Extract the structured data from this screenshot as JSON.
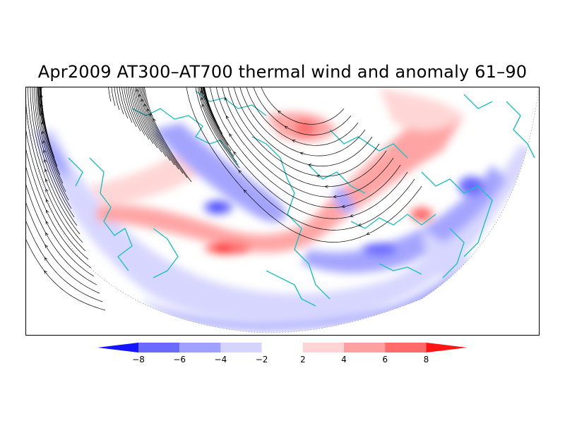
{
  "title": "Apr2009 AT300–AT700 thermal wind and anomaly 61–90",
  "colorbar": {
    "ticks": [
      "−8",
      "−6",
      "−4",
      "−2",
      "2",
      "4",
      "6",
      "8"
    ],
    "colors": [
      "#1414ff",
      "#6a6aff",
      "#a0a0ff",
      "#d4d4ff",
      "#ffffff",
      "#ffd4d4",
      "#ffa0a0",
      "#ff6a6a",
      "#ff1414"
    ]
  },
  "map": {
    "coastline_color": "#20c0c0",
    "streamline_color": "#000000"
  }
}
